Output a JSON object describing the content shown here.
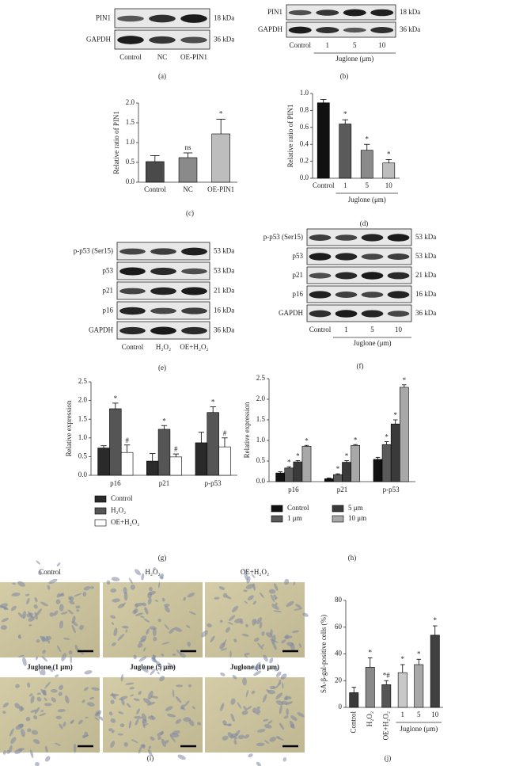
{
  "blots": [
    {
      "caption": "(a)",
      "rows": [
        {
          "label": "PIN1",
          "size": "18 kDa"
        },
        {
          "label": "GAPDH",
          "size": "36 kDa"
        }
      ],
      "lanes": [
        "Control",
        "NC",
        "OE-PIN1"
      ]
    },
    {
      "caption": "(b)",
      "rows": [
        {
          "label": "PIN1",
          "size": "18 kDa"
        },
        {
          "label": "GAPDH",
          "size": "36 kDa"
        }
      ],
      "lanes": [
        "Control",
        "1",
        "5",
        "10"
      ],
      "group_label": "Juglone (μm)"
    },
    {
      "caption": "(e)",
      "rows": [
        {
          "label": "p-p53 (Ser15)",
          "size": "53 kDa"
        },
        {
          "label": "p53",
          "size": "53 kDa"
        },
        {
          "label": "p21",
          "size": "21 kDa"
        },
        {
          "label": "p16",
          "size": "16 kDa"
        },
        {
          "label": "GAPDH",
          "size": "36 kDa"
        }
      ],
      "lanes": [
        "Control",
        "H₂O₂",
        "OE+H₂O₂"
      ]
    },
    {
      "caption": "(f)",
      "rows": [
        {
          "label": "p-p53 (Ser15)",
          "size": "53 kDa"
        },
        {
          "label": "p53",
          "size": "53 kDa"
        },
        {
          "label": "p21",
          "size": "21 kDa"
        },
        {
          "label": "p16",
          "size": "16 kDa"
        },
        {
          "label": "GAPDH",
          "size": "36 kDa"
        }
      ],
      "lanes": [
        "Control",
        "1",
        "5",
        "10"
      ],
      "group_label": "Juglone (μm)"
    }
  ],
  "micrographs": {
    "caption": "(i)",
    "panels": [
      "Control",
      "H₂O₂",
      "OE+H₂O₂",
      "Juglone (1 μm)",
      "Juglone (5 μm)",
      "Juglone (10 μm)"
    ]
  },
  "chart_data": [
    {
      "type": "bar",
      "caption": "(c)",
      "y_label": "Relative ratio of PIN1",
      "categories": [
        "Control",
        "NC",
        "OE-PIN1"
      ],
      "values": [
        0.52,
        0.62,
        1.22
      ],
      "errors": [
        0.15,
        0.12,
        0.37
      ],
      "annotations": [
        null,
        "ns",
        "*"
      ],
      "colors": [
        "#4a4a4a",
        "#8a8a8a",
        "#bdbdbd"
      ],
      "ylim": [
        0,
        2
      ],
      "yticks": [
        {
          "value": 0,
          "label": "0.0"
        },
        0.5,
        {
          "value": 1,
          "label": "1.0"
        },
        1.5,
        {
          "value": 2,
          "label": "2.0"
        }
      ]
    },
    {
      "type": "bar",
      "caption": "(d)",
      "y_label": "Relative ratio of PIN1",
      "group_label": "Juglone (μm)",
      "categories": [
        "Control",
        "1",
        "5",
        "10"
      ],
      "values": [
        0.89,
        0.64,
        0.33,
        0.18
      ],
      "errors": [
        0.04,
        0.05,
        0.07,
        0.04
      ],
      "annotations": [
        null,
        "*",
        "*",
        "*"
      ],
      "colors": [
        "#111111",
        "#5a5a5a",
        "#8a8a8a",
        "#bdbdbd"
      ],
      "ylim": [
        0,
        1
      ],
      "yticks": [
        {
          "value": 0,
          "label": "0.0"
        },
        0.2,
        0.4,
        0.6,
        0.8,
        {
          "value": 1,
          "label": "1.0"
        }
      ]
    },
    {
      "type": "grouped-bar",
      "caption": "(g)",
      "y_label": "Relative expression",
      "categories": [
        "p16",
        "p21",
        "p-p53"
      ],
      "series": [
        {
          "name": "Control",
          "color": "#2a2a2a",
          "values": [
            0.73,
            0.38,
            0.87
          ],
          "errors": [
            0.06,
            0.2,
            0.28
          ],
          "annotations": [
            null,
            null,
            null
          ]
        },
        {
          "name": "H₂O₂",
          "color": "#555555",
          "values": [
            1.78,
            1.23,
            1.68
          ],
          "errors": [
            0.15,
            0.1,
            0.15
          ],
          "annotations": [
            "*",
            "*",
            "*"
          ]
        },
        {
          "name": "OE+H₂O₂",
          "color": "#ffffff",
          "values": [
            0.61,
            0.49,
            0.76
          ],
          "errors": [
            0.2,
            0.08,
            0.24
          ],
          "annotations": [
            "#",
            "#",
            "#"
          ]
        }
      ],
      "ylim": [
        0,
        2.5
      ],
      "yticks": [
        {
          "value": 0,
          "label": "0.0"
        },
        0.5,
        {
          "value": 1,
          "label": "1.0"
        },
        1.5,
        {
          "value": 2,
          "label": "2.0"
        },
        2.5
      ]
    },
    {
      "type": "grouped-bar",
      "caption": "(h)",
      "y_label": "Relative expression",
      "categories": [
        "p16",
        "p21",
        "p-p53"
      ],
      "series": [
        {
          "name": "Control",
          "color": "#111111",
          "values": [
            0.21,
            0.07,
            0.54
          ],
          "errors": [
            0.03,
            0.02,
            0.05
          ],
          "annotations": [
            null,
            null,
            null
          ]
        },
        {
          "name": "1 μm",
          "color": "#5a5a5a",
          "values": [
            0.33,
            0.17,
            0.9
          ],
          "errors": [
            0.03,
            0.02,
            0.07
          ],
          "annotations": [
            "*",
            "*",
            "*"
          ]
        },
        {
          "name": "5 μm",
          "color": "#3a3a3a",
          "values": [
            0.48,
            0.47,
            1.4
          ],
          "errors": [
            0.03,
            0.04,
            0.1
          ],
          "annotations": [
            "*",
            "*",
            "*"
          ]
        },
        {
          "name": "10 μm",
          "color": "#a8a8a8",
          "values": [
            0.86,
            0.88,
            2.29
          ],
          "errors": [
            0.02,
            0.02,
            0.06
          ],
          "annotations": [
            "*",
            "*",
            "*"
          ]
        }
      ],
      "ylim": [
        0,
        2.5
      ],
      "yticks": [
        {
          "value": 0,
          "label": "0.0"
        },
        0.5,
        {
          "value": 1,
          "label": "1.0"
        },
        1.5,
        {
          "value": 2,
          "label": "2.0"
        },
        2.5
      ]
    },
    {
      "type": "bar",
      "caption": "(j)",
      "y_label": "SA-β-gal-positive cells (%)",
      "group_label": "Juglone (μm)",
      "categories": [
        "Control",
        "H₂O₂",
        "OE+H₂O₂",
        "1",
        "5",
        "10"
      ],
      "values": [
        11,
        30,
        17,
        26,
        32,
        54
      ],
      "errors": [
        4,
        7,
        3,
        6,
        4,
        7
      ],
      "annotations": [
        null,
        "*",
        "*#",
        "*",
        "*",
        "*"
      ],
      "colors": [
        "#3a3a3a",
        "#8a8a8a",
        "#555555",
        "#c8c8c8",
        "#a8a8a8",
        "#404040"
      ],
      "ylim": [
        0,
        80
      ],
      "yticks": [
        0,
        20,
        40,
        60,
        80
      ]
    }
  ]
}
